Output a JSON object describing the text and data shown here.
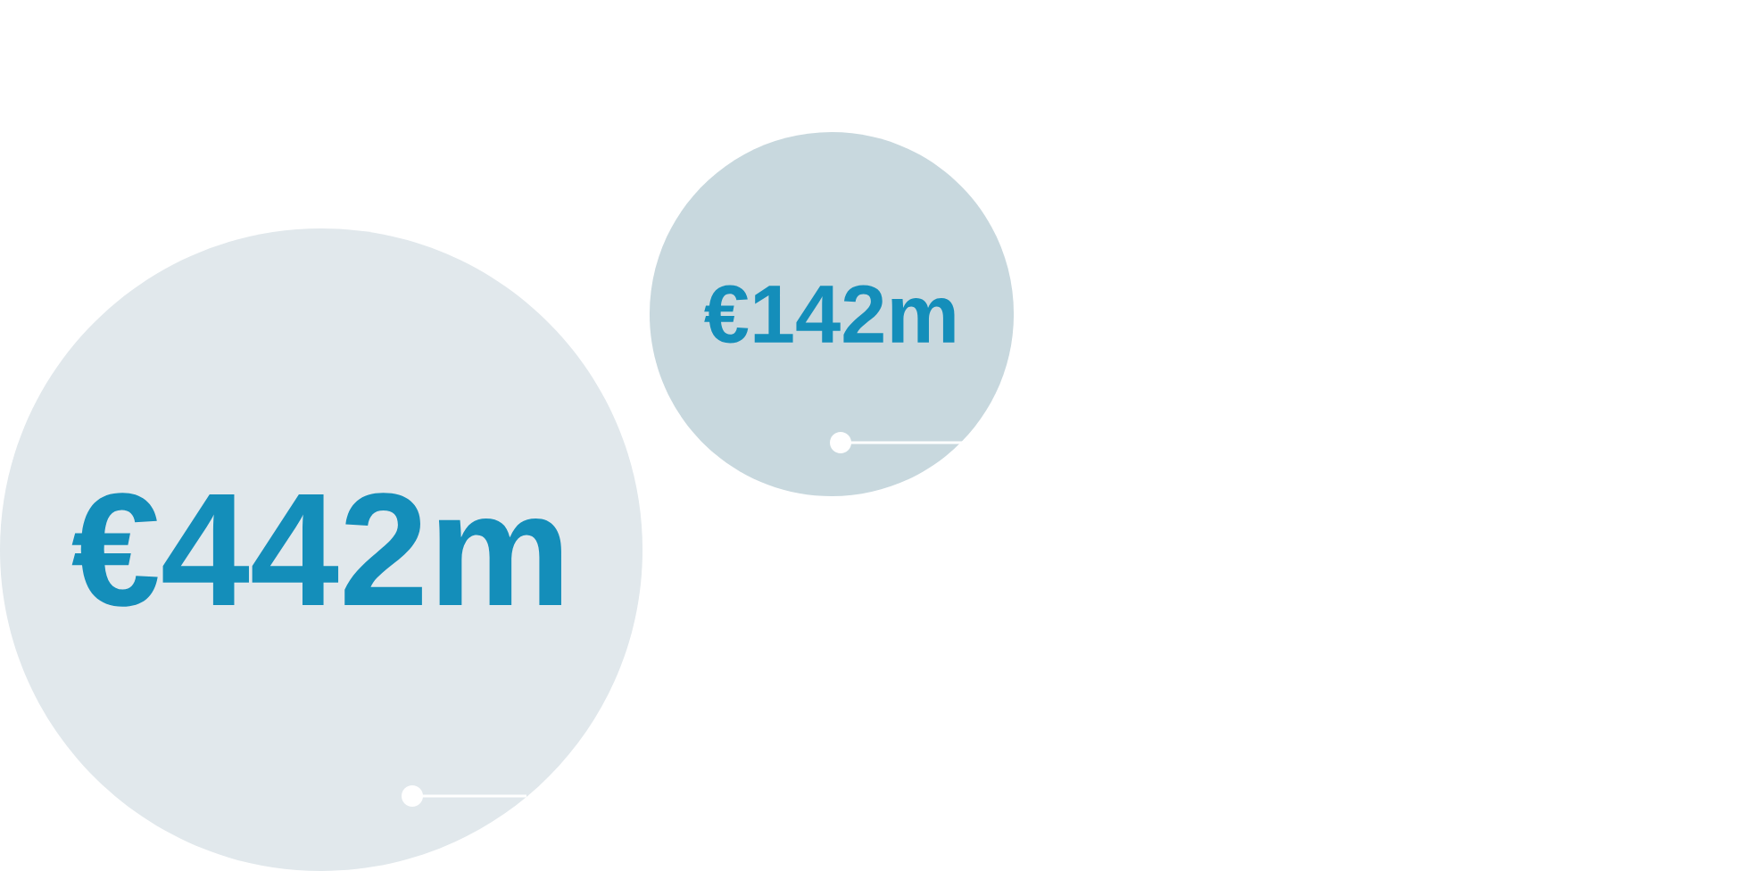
{
  "chart_data": {
    "type": "other",
    "categories": [
      null,
      null
    ],
    "values": [
      442,
      142
    ],
    "colors": [
      "#e1e8ec",
      "#c8d8de"
    ],
    "value_labels": [
      "€442m",
      "€142m"
    ]
  }
}
